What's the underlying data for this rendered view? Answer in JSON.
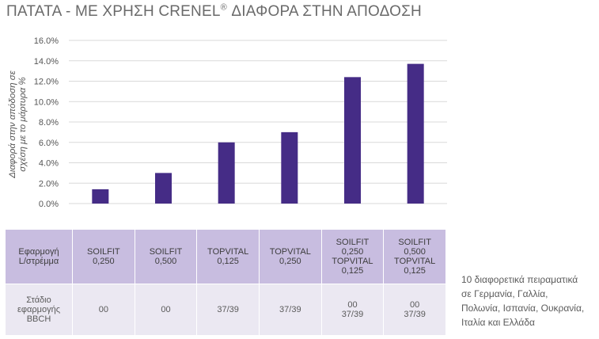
{
  "title": {
    "main": "ΠΑΤΑΤΑ - ΜΕ ΧΡΗΣΗ CRENEL",
    "reg_mark": "®",
    "rest": " ΔΙΑΦΟΡΑ ΣΤΗΝ ΑΠΟΔΟΣΗ"
  },
  "chart_data": {
    "type": "bar",
    "categories": [
      "SOILFIT 0,250",
      "SOILFIT 0,500",
      "TOPVITAL 0,125",
      "TOPVITAL 0,250",
      "SOILFIT 0,250 TOPVITAL 0,125",
      "SOILFIT 0,500 TOPVITAL 0,125"
    ],
    "values": [
      1.4,
      3.0,
      6.0,
      7.0,
      12.4,
      13.7
    ],
    "ylabel_lines": [
      "Διαφορά στην απόδοση σε",
      "σχέση με το μάρτυρα %"
    ],
    "xlabel": "",
    "ylim": [
      0,
      16
    ],
    "yticks": [
      "0.0%",
      "2.0%",
      "4.0%",
      "6.0%",
      "8.0%",
      "10.0%",
      "12.0%",
      "14.0%",
      "16.0%"
    ],
    "grid": true,
    "bar_color": "#452c86",
    "grid_color": "#d9d9d9"
  },
  "table": {
    "application_header_lines": [
      "Εφαρμογή",
      "L/στρέμμα"
    ],
    "stage_header_lines": [
      "Στάδιο",
      "εφαρμογής",
      "BBCH"
    ],
    "application_cells": [
      [
        "SOILFIT",
        "0,250"
      ],
      [
        "SOILFIT",
        "0,500"
      ],
      [
        "TOPVITAL",
        "0,125"
      ],
      [
        "TOPVITAL",
        "0,250"
      ],
      [
        "SOILFIT",
        "0,250",
        "TOPVITAL",
        "0,125"
      ],
      [
        "SOILFIT",
        "0,500",
        "TOPVITAL",
        "0,125"
      ]
    ],
    "stage_cells": [
      [
        "00"
      ],
      [
        "00"
      ],
      [
        "37/39"
      ],
      [
        "37/39"
      ],
      [
        "00",
        "37/39"
      ],
      [
        "00",
        "37/39"
      ]
    ]
  },
  "note_lines": [
    "10 διαφορετικά πειραματικά",
    "σε Γερμανία, Γαλλία,",
    "Πολωνία, Ισπανία, Ουκρανία,",
    "Ιταλία και Ελλάδα"
  ]
}
